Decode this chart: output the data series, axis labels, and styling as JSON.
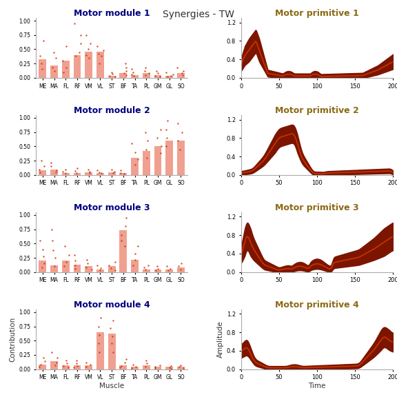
{
  "title": "Synergies - TW",
  "muscles": [
    "ME",
    "MA",
    "FL",
    "RF",
    "VM",
    "VL",
    "ST",
    "BF",
    "TA",
    "PL",
    "GM",
    "GL",
    "SO"
  ],
  "bar_color": "#F0A090",
  "dot_color": "#CC3300",
  "line_color_mean": "#CC3300",
  "line_color_fill": "#7B1500",
  "module_titles": [
    "Motor module 1",
    "Motor module 2",
    "Motor module 3",
    "Motor module 4"
  ],
  "primitive_titles": [
    "Motor primitive 1",
    "Motor primitive 2",
    "Motor primitive 3",
    "Motor primitive 4"
  ],
  "title_fontsize": 10,
  "subplot_title_fontsize": 9,
  "title_color_module": "#000080",
  "title_color_primitive": "#8B6914",
  "xlabel_bottom": "Muscle",
  "ylabel_left": "Contribution",
  "xlabel_time": "Time",
  "ylabel_amplitude": "Amplitude",
  "bar_heights": [
    [
      0.33,
      0.22,
      0.3,
      0.4,
      0.46,
      0.46,
      0.04,
      0.08,
      0.05,
      0.08,
      0.05,
      0.04,
      0.08
    ],
    [
      0.08,
      0.1,
      0.04,
      0.04,
      0.05,
      0.04,
      0.05,
      0.04,
      0.3,
      0.42,
      0.5,
      0.6,
      0.6
    ],
    [
      0.2,
      0.12,
      0.2,
      0.13,
      0.1,
      0.05,
      0.1,
      0.73,
      0.22,
      0.05,
      0.05,
      0.05,
      0.08
    ],
    [
      0.08,
      0.14,
      0.07,
      0.07,
      0.07,
      0.65,
      0.62,
      0.07,
      0.04,
      0.07,
      0.04,
      0.04,
      0.04
    ]
  ],
  "dot_data": [
    [
      [
        0.65,
        0.38,
        0.25,
        0.15
      ],
      [
        0.45,
        0.35,
        0.18,
        0.12
      ],
      [
        0.55,
        0.3,
        0.18,
        0.1
      ],
      [
        0.95,
        0.75,
        0.6,
        0.45,
        0.38
      ],
      [
        0.75,
        0.6,
        0.5,
        0.4,
        0.35
      ],
      [
        0.55,
        0.48,
        0.42,
        0.38,
        0.25
      ],
      [
        0.1,
        0.07,
        0.04,
        0.02
      ],
      [
        0.25,
        0.18,
        0.12,
        0.08,
        0.05
      ],
      [
        0.15,
        0.1,
        0.06,
        0.03
      ],
      [
        0.18,
        0.12,
        0.08,
        0.05
      ],
      [
        0.12,
        0.08,
        0.04,
        0.02
      ],
      [
        0.1,
        0.06,
        0.03,
        0.02
      ],
      [
        0.18,
        0.12,
        0.08,
        0.05
      ]
    ],
    [
      [
        0.25,
        0.15,
        0.1,
        0.05
      ],
      [
        0.22,
        0.15,
        0.08,
        0.05
      ],
      [
        0.1,
        0.06,
        0.03
      ],
      [
        0.12,
        0.07,
        0.03
      ],
      [
        0.1,
        0.06,
        0.03
      ],
      [
        0.08,
        0.05,
        0.03
      ],
      [
        0.1,
        0.06,
        0.03
      ],
      [
        0.08,
        0.04,
        0.02
      ],
      [
        0.55,
        0.4,
        0.28,
        0.18
      ],
      [
        0.75,
        0.6,
        0.45,
        0.3
      ],
      [
        0.8,
        0.65,
        0.5,
        0.38
      ],
      [
        0.95,
        0.8,
        0.65,
        0.5
      ],
      [
        0.9,
        0.75,
        0.6,
        0.45
      ]
    ],
    [
      [
        0.55,
        0.4,
        0.28,
        0.15,
        0.08
      ],
      [
        0.75,
        0.55,
        0.38,
        0.25,
        0.1
      ],
      [
        0.45,
        0.3,
        0.18,
        0.1
      ],
      [
        0.3,
        0.2,
        0.12,
        0.06
      ],
      [
        0.22,
        0.15,
        0.08,
        0.04
      ],
      [
        0.12,
        0.07,
        0.03
      ],
      [
        0.18,
        0.12,
        0.07,
        0.03
      ],
      [
        0.95,
        0.8,
        0.65,
        0.55,
        0.45
      ],
      [
        0.45,
        0.32,
        0.22,
        0.12
      ],
      [
        0.12,
        0.08,
        0.04
      ],
      [
        0.1,
        0.06,
        0.03
      ],
      [
        0.1,
        0.06,
        0.03
      ],
      [
        0.15,
        0.1,
        0.05
      ]
    ],
    [
      [
        0.2,
        0.14,
        0.08,
        0.04
      ],
      [
        0.3,
        0.2,
        0.12,
        0.07
      ],
      [
        0.15,
        0.1,
        0.06,
        0.03
      ],
      [
        0.15,
        0.1,
        0.06,
        0.03
      ],
      [
        0.12,
        0.08,
        0.04
      ],
      [
        0.9,
        0.75,
        0.6,
        0.45,
        0.3
      ],
      [
        0.85,
        0.72,
        0.58,
        0.45,
        0.3
      ],
      [
        0.18,
        0.12,
        0.06,
        0.03
      ],
      [
        0.08,
        0.05,
        0.02
      ],
      [
        0.15,
        0.1,
        0.05
      ],
      [
        0.07,
        0.04,
        0.02
      ],
      [
        0.06,
        0.03,
        0.01
      ],
      [
        0.07,
        0.04,
        0.02
      ]
    ]
  ],
  "ylim_bar": [
    0.0,
    1.05
  ],
  "ylim_prim": [
    0.0,
    1.3
  ],
  "yticks_bar": [
    0.0,
    0.25,
    0.5,
    0.75,
    1.0
  ],
  "ytick_labels_bar": [
    "0.00",
    "0.25",
    "0.50",
    "0.75",
    "1.00"
  ],
  "yticks_prim": [
    0.0,
    0.4,
    0.8,
    1.2
  ],
  "ytick_labels_prim": [
    "0.0",
    "0.4",
    "0.8",
    "1.2"
  ],
  "xticks_prim": [
    0,
    50,
    100,
    150,
    200
  ],
  "bg_color": "#FFFFFF"
}
